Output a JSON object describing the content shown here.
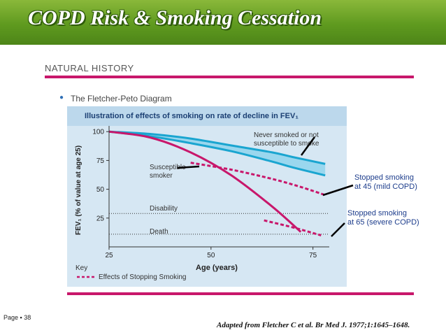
{
  "banner": {
    "title": "COPD Risk & Smoking Cessation"
  },
  "section": {
    "heading": "NATURAL HISTORY",
    "bullet": "The Fletcher-Peto Diagram"
  },
  "footer": {
    "page": "Page ▪ 38",
    "citation": "Adapted from Fletcher C et al. Br Med J. 1977;1:1645–1648."
  },
  "colors": {
    "banner": "#6aa52a",
    "accent": "#c8176b",
    "band": "#1aa5d0",
    "panel": "#d6e7f3"
  },
  "chart_data": {
    "type": "line",
    "title": "Illustration of effects of smoking on rate of decline in FEV₁",
    "xlabel": "Age (years)",
    "ylabel": "FEV₁ (% of value at age 25)",
    "xlim": [
      25,
      79
    ],
    "ylim": [
      0,
      105
    ],
    "xticks": [
      "25",
      "50",
      "75"
    ],
    "yticks": [
      "100",
      "75",
      "50",
      "25"
    ],
    "series": [
      {
        "name": "Never smoked or not susceptible to smoke (upper)",
        "x": [
          25,
          35,
          45,
          55,
          65,
          70,
          78
        ],
        "y": [
          100,
          98,
          94,
          88,
          82,
          78,
          72
        ]
      },
      {
        "name": "Never smoked or not susceptible to smoke (lower)",
        "x": [
          25,
          35,
          45,
          55,
          65,
          70,
          78
        ],
        "y": [
          100,
          96,
          90,
          83,
          74,
          69,
          62
        ]
      },
      {
        "name": "Susceptible smoker",
        "x": [
          25,
          35,
          45,
          55,
          65,
          72
        ],
        "y": [
          100,
          95,
          82,
          62,
          35,
          13
        ]
      },
      {
        "name": "Stopped smoking at 45",
        "x": [
          45,
          55,
          65,
          72,
          78
        ],
        "y": [
          73,
          67,
          59,
          52,
          45
        ]
      },
      {
        "name": "Stopped smoking at 65",
        "x": [
          63,
          70,
          75,
          77
        ],
        "y": [
          23,
          17,
          12,
          10
        ]
      }
    ],
    "reference_lines": [
      {
        "label": "Disability",
        "y": 29
      },
      {
        "label": "Death",
        "y": 11
      }
    ],
    "labels": {
      "never": "Never smoked or not susceptible to smoke",
      "susceptible": "Susceptible smoker",
      "disability": "Disability",
      "death": "Death"
    },
    "key": {
      "heading": "Key",
      "entry": "Effects of Stopping Smoking"
    },
    "annotations": [
      {
        "text": "Stopped smoking at 45 (mild COPD)"
      },
      {
        "text": "Stopped smoking at 65 (severe COPD)"
      }
    ]
  }
}
